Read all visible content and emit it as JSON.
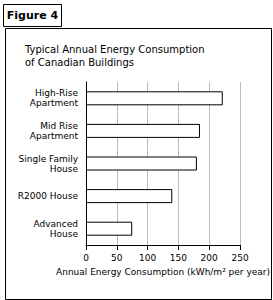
{
  "chart_data": {
    "type": "bar",
    "orientation": "horizontal",
    "title": "Typical Annual Energy Consumption\nof Canadian Buildings",
    "annotations": [
      "Figure 4"
    ],
    "categories": [
      "High-Rise\nApartment",
      "Mid Rise\nApartment",
      "Single Family\nHouse",
      "R2000 House",
      "Advanced\nHouse"
    ],
    "values": [
      222,
      185,
      180,
      140,
      75
    ],
    "color": "#ffffff",
    "xlabel": "Annual Energy Consumption (kWh/m² per year)",
    "xlim": [
      0,
      250
    ],
    "xticks": [
      0,
      50,
      100,
      150,
      200,
      250
    ],
    "grid": true
  }
}
